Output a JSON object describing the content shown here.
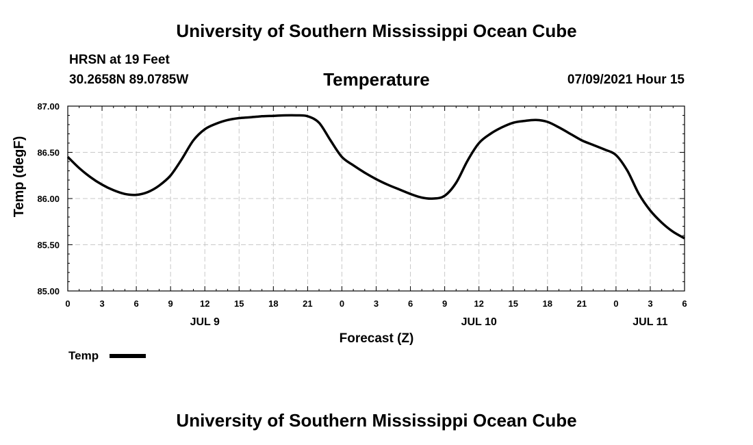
{
  "header": {
    "top_title": "University of Southern Mississippi Ocean Cube",
    "station": "HRSN at 19 Feet",
    "coords": "30.2658N  89.0785W",
    "chart_title": "Temperature",
    "run_time": "07/09/2021 Hour 15"
  },
  "footer": {
    "bottom_title": "University of Southern Mississippi Ocean Cube"
  },
  "chart_data": {
    "type": "line",
    "title": "Temperature",
    "xlabel": "Forecast (Z)",
    "ylabel": "Temp (degF)",
    "ylim": [
      85.0,
      87.0
    ],
    "xlim": [
      0,
      54
    ],
    "x_unit": "hours from 2021-07-09 00Z",
    "yticks": [
      85.0,
      85.5,
      86.0,
      86.5,
      87.0
    ],
    "ytick_labels": [
      "85.00",
      "85.50",
      "86.00",
      "86.50",
      "87.00"
    ],
    "xticks": [
      0,
      3,
      6,
      9,
      12,
      15,
      18,
      21,
      24,
      27,
      30,
      33,
      36,
      39,
      42,
      45,
      48,
      51,
      54
    ],
    "xtick_labels": [
      "0",
      "3",
      "6",
      "9",
      "12",
      "15",
      "18",
      "21",
      "0",
      "3",
      "6",
      "9",
      "12",
      "15",
      "18",
      "21",
      "0",
      "3",
      "6"
    ],
    "date_labels": [
      {
        "x": 12,
        "label": "JUL 9"
      },
      {
        "x": 36,
        "label": "JUL 10"
      },
      {
        "x": 51,
        "label": "JUL 11"
      }
    ],
    "grid": true,
    "legend_position": "bottom-left",
    "series": [
      {
        "name": "Temp",
        "color": "#000000",
        "x": [
          0,
          1,
          2,
          3,
          4,
          5,
          6,
          7,
          8,
          9,
          10,
          11,
          12,
          13,
          14,
          15,
          16,
          17,
          18,
          19,
          20,
          21,
          22,
          23,
          24,
          25,
          26,
          27,
          28,
          29,
          30,
          31,
          32,
          33,
          34,
          35,
          36,
          37,
          38,
          39,
          40,
          41,
          42,
          43,
          44,
          45,
          46,
          47,
          48,
          49,
          50,
          51,
          52,
          53,
          54
        ],
        "y": [
          86.45,
          86.33,
          86.23,
          86.15,
          86.09,
          86.05,
          86.04,
          86.07,
          86.14,
          86.25,
          86.43,
          86.63,
          86.75,
          86.81,
          86.85,
          86.87,
          86.88,
          86.89,
          86.895,
          86.9,
          86.9,
          86.89,
          86.82,
          86.63,
          86.45,
          86.36,
          86.28,
          86.21,
          86.15,
          86.1,
          86.05,
          86.01,
          86.0,
          86.03,
          86.17,
          86.41,
          86.6,
          86.7,
          86.77,
          86.82,
          86.84,
          86.85,
          86.83,
          86.77,
          86.7,
          86.63,
          86.58,
          86.53,
          86.47,
          86.3,
          86.05,
          85.87,
          85.74,
          85.64,
          85.57
        ]
      }
    ]
  }
}
